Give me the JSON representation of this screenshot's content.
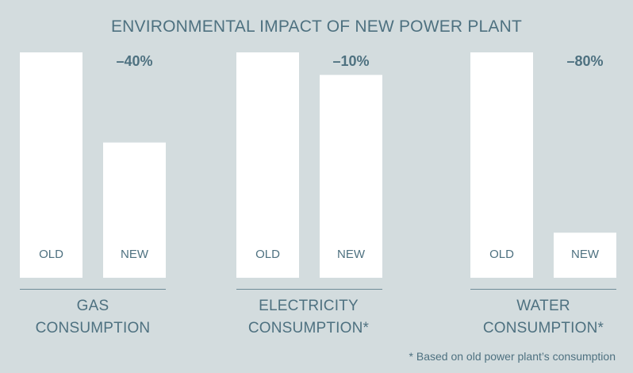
{
  "chart_data": {
    "type": "bar",
    "title": "ENVIRONMENTAL IMPACT OF NEW POWER PLANT",
    "value_scale": "relative consumption, OLD = 100",
    "ylim": [
      0,
      100
    ],
    "groups": [
      {
        "label_line1": "GAS",
        "label_line2": "CONSUMPTION",
        "change_label": "–40%",
        "bars": [
          {
            "label": "OLD",
            "value": 100
          },
          {
            "label": "NEW",
            "value": 60
          }
        ]
      },
      {
        "label_line1": "ELECTRICITY",
        "label_line2": "CONSUMPTION*",
        "change_label": "–10%",
        "bars": [
          {
            "label": "OLD",
            "value": 100
          },
          {
            "label": "NEW",
            "value": 90
          }
        ]
      },
      {
        "label_line1": "WATER",
        "label_line2": "CONSUMPTION*",
        "change_label": "–80%",
        "bars": [
          {
            "label": "OLD",
            "value": 100
          },
          {
            "label": "NEW",
            "value": 20
          }
        ]
      }
    ],
    "grid": false,
    "legend": "none"
  },
  "footnote": "* Based on old power plant’s consumption",
  "colors": {
    "background": "#d3dcde",
    "bar": "#ffffff",
    "text": "#4e7180"
  }
}
